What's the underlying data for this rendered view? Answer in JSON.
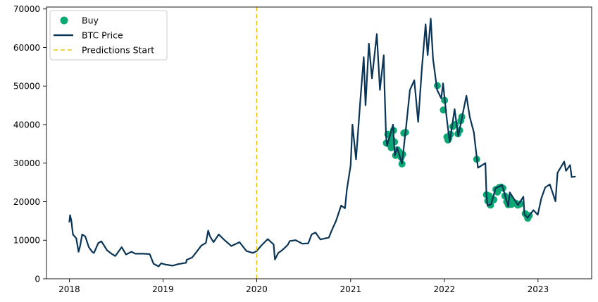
{
  "chart_data": {
    "type": "line",
    "title": "",
    "xlabel": "",
    "ylabel": "",
    "xlim": [
      "2017-10-04",
      "2023-07-29"
    ],
    "ylim": [
      0,
      70500
    ],
    "grid": false,
    "legend_position": "top-left",
    "colors": {
      "price": "#0b3556",
      "buy": "#0aa873",
      "predictions_start": "#e8c310",
      "axis": "#000000"
    },
    "x_ticks": [
      {
        "date": "2018-01-01",
        "label": "2018"
      },
      {
        "date": "2019-01-01",
        "label": "2019"
      },
      {
        "date": "2020-01-01",
        "label": "2020"
      },
      {
        "date": "2021-01-01",
        "label": "2021"
      },
      {
        "date": "2022-01-01",
        "label": "2022"
      },
      {
        "date": "2023-01-01",
        "label": "2023"
      }
    ],
    "y_ticks": [
      {
        "value": 0,
        "label": "0"
      },
      {
        "value": 10000,
        "label": "10000"
      },
      {
        "value": 20000,
        "label": "20000"
      },
      {
        "value": 30000,
        "label": "30000"
      },
      {
        "value": 40000,
        "label": "40000"
      },
      {
        "value": 50000,
        "label": "50000"
      },
      {
        "value": 60000,
        "label": "60000"
      },
      {
        "value": 70000,
        "label": "70000"
      }
    ],
    "legend": [
      {
        "label": "Buy",
        "marker": "dot"
      },
      {
        "label": "BTC Price",
        "marker": "line"
      },
      {
        "label": "Predictions Start",
        "marker": "dashed"
      }
    ],
    "predictions_start_date": "2020-01-01",
    "series": [
      {
        "name": "BTC Price",
        "points": [
          [
            "2018-01-01",
            14800
          ],
          [
            "2018-01-04",
            16500
          ],
          [
            "2018-01-09",
            15000
          ],
          [
            "2018-01-15",
            11500
          ],
          [
            "2018-01-28",
            10500
          ],
          [
            "2018-02-06",
            7000
          ],
          [
            "2018-02-12",
            8500
          ],
          [
            "2018-02-20",
            11500
          ],
          [
            "2018-03-04",
            11000
          ],
          [
            "2018-03-18",
            8200
          ],
          [
            "2018-03-31",
            7000
          ],
          [
            "2018-04-07",
            6700
          ],
          [
            "2018-04-24",
            9300
          ],
          [
            "2018-05-06",
            9700
          ],
          [
            "2018-05-28",
            7400
          ],
          [
            "2018-06-14",
            6500
          ],
          [
            "2018-06-29",
            5900
          ],
          [
            "2018-07-24",
            8200
          ],
          [
            "2018-08-10",
            6300
          ],
          [
            "2018-08-31",
            7000
          ],
          [
            "2018-09-15",
            6500
          ],
          [
            "2018-10-15",
            6500
          ],
          [
            "2018-11-10",
            6400
          ],
          [
            "2018-11-15",
            5600
          ],
          [
            "2018-11-25",
            3900
          ],
          [
            "2018-12-15",
            3200
          ],
          [
            "2018-12-24",
            4000
          ],
          [
            "2019-01-10",
            3700
          ],
          [
            "2019-02-07",
            3400
          ],
          [
            "2019-03-01",
            3800
          ],
          [
            "2019-04-01",
            4150
          ],
          [
            "2019-04-03",
            4900
          ],
          [
            "2019-04-24",
            5500
          ],
          [
            "2019-05-12",
            7000
          ],
          [
            "2019-05-30",
            8600
          ],
          [
            "2019-06-17",
            9300
          ],
          [
            "2019-06-26",
            12500
          ],
          [
            "2019-07-03",
            11000
          ],
          [
            "2019-07-17",
            9500
          ],
          [
            "2019-08-06",
            11500
          ],
          [
            "2019-08-26",
            10200
          ],
          [
            "2019-09-24",
            8500
          ],
          [
            "2019-10-26",
            9500
          ],
          [
            "2019-11-22",
            7200
          ],
          [
            "2019-12-17",
            6700
          ],
          [
            "2020-01-01",
            7200
          ],
          [
            "2020-01-20",
            8700
          ],
          [
            "2020-02-13",
            10300
          ],
          [
            "2020-03-07",
            8900
          ],
          [
            "2020-03-12",
            5000
          ],
          [
            "2020-03-25",
            6700
          ],
          [
            "2020-04-07",
            7300
          ],
          [
            "2020-04-30",
            8700
          ],
          [
            "2020-05-09",
            9800
          ],
          [
            "2020-06-01",
            10000
          ],
          [
            "2020-06-27",
            9100
          ],
          [
            "2020-07-20",
            9200
          ],
          [
            "2020-08-02",
            11500
          ],
          [
            "2020-08-17",
            12000
          ],
          [
            "2020-09-05",
            10200
          ],
          [
            "2020-10-08",
            10700
          ],
          [
            "2020-10-21",
            12800
          ],
          [
            "2020-11-05",
            15000
          ],
          [
            "2020-11-25",
            19000
          ],
          [
            "2020-12-10",
            18300
          ],
          [
            "2020-12-17",
            23000
          ],
          [
            "2021-01-01",
            29400
          ],
          [
            "2021-01-08",
            40000
          ],
          [
            "2021-01-22",
            31000
          ],
          [
            "2021-02-08",
            46500
          ],
          [
            "2021-02-21",
            57500
          ],
          [
            "2021-02-28",
            45000
          ],
          [
            "2021-03-13",
            61000
          ],
          [
            "2021-03-25",
            52000
          ],
          [
            "2021-04-13",
            63500
          ],
          [
            "2021-04-25",
            49000
          ],
          [
            "2021-05-10",
            58000
          ],
          [
            "2021-05-13",
            49500
          ],
          [
            "2021-05-19",
            37000
          ],
          [
            "2021-05-23",
            34500
          ],
          [
            "2021-06-15",
            40000
          ],
          [
            "2021-06-22",
            32000
          ],
          [
            "2021-07-01",
            34000
          ],
          [
            "2021-07-20",
            29900
          ],
          [
            "2021-08-06",
            40000
          ],
          [
            "2021-08-20",
            49000
          ],
          [
            "2021-09-06",
            51500
          ],
          [
            "2021-09-21",
            40700
          ],
          [
            "2021-10-06",
            55000
          ],
          [
            "2021-10-20",
            66000
          ],
          [
            "2021-10-28",
            58000
          ],
          [
            "2021-11-09",
            67500
          ],
          [
            "2021-11-18",
            57000
          ],
          [
            "2021-12-04",
            49000
          ],
          [
            "2021-12-20",
            46800
          ],
          [
            "2021-12-27",
            50700
          ],
          [
            "2022-01-10",
            41800
          ],
          [
            "2022-01-22",
            35500
          ],
          [
            "2022-02-10",
            44000
          ],
          [
            "2022-02-24",
            37000
          ],
          [
            "2022-03-28",
            47500
          ],
          [
            "2022-04-10",
            42000
          ],
          [
            "2022-04-26",
            38000
          ],
          [
            "2022-05-09",
            30500
          ],
          [
            "2022-05-12",
            28800
          ],
          [
            "2022-06-10",
            30000
          ],
          [
            "2022-06-14",
            22000
          ],
          [
            "2022-06-18",
            19000
          ],
          [
            "2022-07-02",
            19300
          ],
          [
            "2022-07-20",
            23500
          ],
          [
            "2022-08-14",
            24300
          ],
          [
            "2022-09-07",
            18800
          ],
          [
            "2022-09-13",
            22400
          ],
          [
            "2022-10-15",
            19100
          ],
          [
            "2022-11-05",
            21300
          ],
          [
            "2022-11-09",
            16800
          ],
          [
            "2022-11-21",
            15800
          ],
          [
            "2022-12-14",
            17800
          ],
          [
            "2022-12-31",
            16600
          ],
          [
            "2023-01-14",
            20900
          ],
          [
            "2023-01-29",
            23700
          ],
          [
            "2023-02-16",
            24500
          ],
          [
            "2023-03-10",
            20100
          ],
          [
            "2023-03-18",
            27500
          ],
          [
            "2023-04-13",
            30400
          ],
          [
            "2023-04-20",
            28000
          ],
          [
            "2023-05-06",
            29500
          ],
          [
            "2023-05-12",
            26400
          ],
          [
            "2023-05-25",
            26500
          ]
        ]
      },
      {
        "name": "Buy",
        "kind": "scatter",
        "points": [
          [
            "2021-05-20",
            35200
          ],
          [
            "2021-05-26",
            37500
          ],
          [
            "2021-05-29",
            35000
          ],
          [
            "2021-06-05",
            37000
          ],
          [
            "2021-06-08",
            34000
          ],
          [
            "2021-06-12",
            36000
          ],
          [
            "2021-06-17",
            38500
          ],
          [
            "2021-06-21",
            35500
          ],
          [
            "2021-06-25",
            32000
          ],
          [
            "2021-07-02",
            33500
          ],
          [
            "2021-07-08",
            33000
          ],
          [
            "2021-07-13",
            32500
          ],
          [
            "2021-07-17",
            31500
          ],
          [
            "2021-07-20",
            29800
          ],
          [
            "2021-07-23",
            32300
          ],
          [
            "2021-07-27",
            37800
          ],
          [
            "2021-08-03",
            38000
          ],
          [
            "2021-12-05",
            50100
          ],
          [
            "2021-12-28",
            43800
          ],
          [
            "2022-01-02",
            46300
          ],
          [
            "2022-01-11",
            36800
          ],
          [
            "2022-01-15",
            36000
          ],
          [
            "2022-01-19",
            36500
          ],
          [
            "2022-01-25",
            37500
          ],
          [
            "2022-02-03",
            39500
          ],
          [
            "2022-02-12",
            40000
          ],
          [
            "2022-02-23",
            37600
          ],
          [
            "2022-03-02",
            38500
          ],
          [
            "2022-03-06",
            41000
          ],
          [
            "2022-03-10",
            42000
          ],
          [
            "2022-05-07",
            31000
          ],
          [
            "2022-06-14",
            21800
          ],
          [
            "2022-06-19",
            20200
          ],
          [
            "2022-06-25",
            21500
          ],
          [
            "2022-06-30",
            19100
          ],
          [
            "2022-07-05",
            20300
          ],
          [
            "2022-07-13",
            20500
          ],
          [
            "2022-07-21",
            23200
          ],
          [
            "2022-07-27",
            22500
          ],
          [
            "2022-08-03",
            23700
          ],
          [
            "2022-08-10",
            23800
          ],
          [
            "2022-08-17",
            23500
          ],
          [
            "2022-08-25",
            21500
          ],
          [
            "2022-09-01",
            20000
          ],
          [
            "2022-09-07",
            19200
          ],
          [
            "2022-09-12",
            20800
          ],
          [
            "2022-09-20",
            19300
          ],
          [
            "2022-09-28",
            19800
          ],
          [
            "2022-10-06",
            19600
          ],
          [
            "2022-10-14",
            19100
          ],
          [
            "2022-10-24",
            19400
          ],
          [
            "2022-11-12",
            16900
          ],
          [
            "2022-11-17",
            16600
          ],
          [
            "2022-11-22",
            15700
          ],
          [
            "2022-11-28",
            16400
          ]
        ]
      }
    ]
  }
}
